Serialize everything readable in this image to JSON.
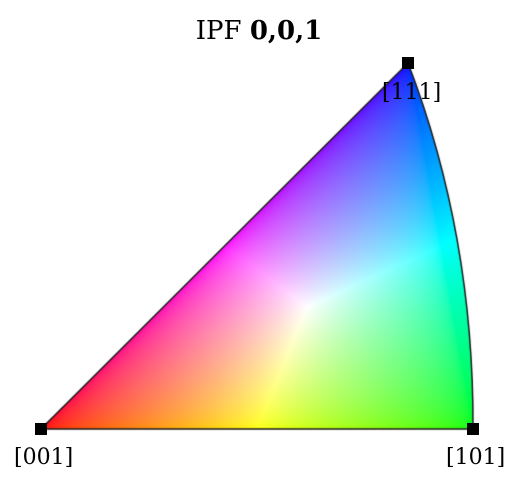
{
  "title": {
    "prefix": "IPF",
    "direction": "0,0,1"
  },
  "corners": {
    "c001": "[001]",
    "c101": "[101]",
    "c111": "[111]"
  },
  "colors": {
    "c001": "#ff0000",
    "c101": "#00ff00",
    "c111": "#0000ff",
    "center": "#ffffff",
    "outline": "#1a1a1a"
  }
}
